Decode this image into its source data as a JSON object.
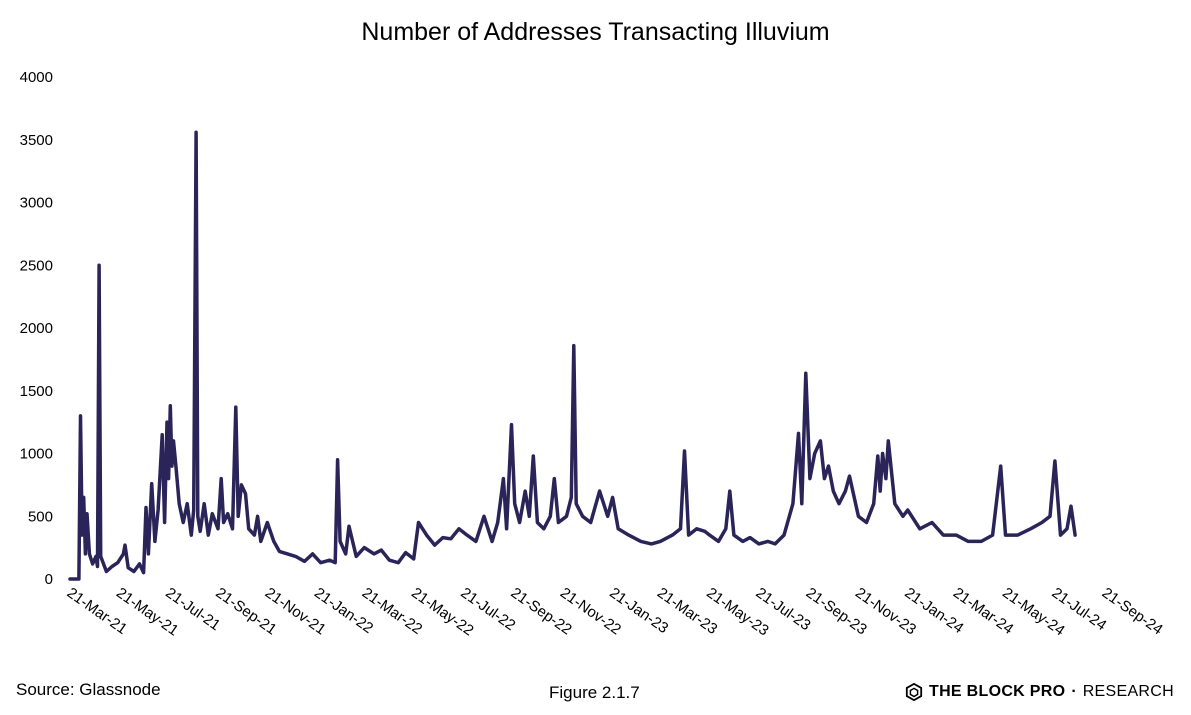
{
  "chart_data": {
    "type": "line",
    "title": "Number of Addresses Transacting Illuvium",
    "xlabel": "",
    "ylabel": "",
    "ylim": [
      0,
      4000
    ],
    "yticks": [
      "0",
      "500",
      "1000",
      "1500",
      "2000",
      "2500",
      "3000",
      "3500",
      "4000"
    ],
    "xticks": [
      "21-Mar-21",
      "21-May-21",
      "21-Jul-21",
      "21-Sep-21",
      "21-Nov-21",
      "21-Jan-22",
      "21-Mar-22",
      "21-May-22",
      "21-Jul-22",
      "21-Sep-22",
      "21-Nov-22",
      "21-Jan-23",
      "21-Mar-23",
      "21-May-23",
      "21-Jul-23",
      "21-Sep-23",
      "21-Nov-23",
      "21-Jan-24",
      "21-Mar-24",
      "21-May-24",
      "21-Jul-24",
      "21-Sep-24"
    ],
    "grid": false,
    "line_color": "#2b2458",
    "series": [
      {
        "name": "",
        "points": [
          [
            "21-Mar-21",
            0
          ],
          [
            "1-Apr-21",
            0
          ],
          [
            "3-Apr-21",
            1300
          ],
          [
            "5-Apr-21",
            350
          ],
          [
            "7-Apr-21",
            650
          ],
          [
            "9-Apr-21",
            200
          ],
          [
            "11-Apr-21",
            520
          ],
          [
            "14-Apr-21",
            200
          ],
          [
            "18-Apr-21",
            120
          ],
          [
            "22-Apr-21",
            180
          ],
          [
            "24-Apr-21",
            100
          ],
          [
            "26-Apr-21",
            2500
          ],
          [
            "28-Apr-21",
            180
          ],
          [
            "5-May-21",
            60
          ],
          [
            "12-May-21",
            100
          ],
          [
            "19-May-21",
            130
          ],
          [
            "26-May-21",
            200
          ],
          [
            "28-May-21",
            270
          ],
          [
            "1-Jun-21",
            90
          ],
          [
            "8-Jun-21",
            60
          ],
          [
            "15-Jun-21",
            120
          ],
          [
            "20-Jun-21",
            50
          ],
          [
            "23-Jun-21",
            570
          ],
          [
            "26-Jun-21",
            200
          ],
          [
            "30-Jun-21",
            760
          ],
          [
            "4-Jul-21",
            300
          ],
          [
            "8-Jul-21",
            550
          ],
          [
            "13-Jul-21",
            1150
          ],
          [
            "16-Jul-21",
            450
          ],
          [
            "19-Jul-21",
            1250
          ],
          [
            "21-Jul-21",
            800
          ],
          [
            "23-Jul-21",
            1380
          ],
          [
            "25-Jul-21",
            900
          ],
          [
            "27-Jul-21",
            1100
          ],
          [
            "30-Jul-21",
            900
          ],
          [
            "3-Aug-21",
            600
          ],
          [
            "8-Aug-21",
            450
          ],
          [
            "13-Aug-21",
            600
          ],
          [
            "18-Aug-21",
            350
          ],
          [
            "21-Aug-21",
            550
          ],
          [
            "24-Aug-21",
            3560
          ],
          [
            "26-Aug-21",
            500
          ],
          [
            "29-Aug-21",
            380
          ],
          [
            "3-Sep-21",
            600
          ],
          [
            "8-Sep-21",
            350
          ],
          [
            "13-Sep-21",
            520
          ],
          [
            "20-Sep-21",
            400
          ],
          [
            "24-Sep-21",
            800
          ],
          [
            "27-Sep-21",
            450
          ],
          [
            "2-Oct-21",
            520
          ],
          [
            "8-Oct-21",
            400
          ],
          [
            "12-Oct-21",
            1370
          ],
          [
            "15-Oct-21",
            500
          ],
          [
            "19-Oct-21",
            750
          ],
          [
            "24-Oct-21",
            680
          ],
          [
            "28-Oct-21",
            400
          ],
          [
            "4-Nov-21",
            350
          ],
          [
            "8-Nov-21",
            500
          ],
          [
            "12-Nov-21",
            300
          ],
          [
            "20-Nov-21",
            450
          ],
          [
            "28-Nov-21",
            300
          ],
          [
            "5-Dec-21",
            220
          ],
          [
            "15-Dec-21",
            200
          ],
          [
            "25-Dec-21",
            180
          ],
          [
            "5-Jan-22",
            140
          ],
          [
            "15-Jan-22",
            200
          ],
          [
            "25-Jan-22",
            130
          ],
          [
            "5-Feb-22",
            150
          ],
          [
            "12-Feb-22",
            130
          ],
          [
            "15-Feb-22",
            950
          ],
          [
            "18-Feb-22",
            300
          ],
          [
            "25-Feb-22",
            200
          ],
          [
            "1-Mar-22",
            420
          ],
          [
            "10-Mar-22",
            180
          ],
          [
            "20-Mar-22",
            250
          ],
          [
            "1-Apr-22",
            200
          ],
          [
            "10-Apr-22",
            230
          ],
          [
            "20-Apr-22",
            150
          ],
          [
            "1-May-22",
            130
          ],
          [
            "10-May-22",
            210
          ],
          [
            "20-May-22",
            160
          ],
          [
            "26-May-22",
            450
          ],
          [
            "5-Jun-22",
            350
          ],
          [
            "15-Jun-22",
            270
          ],
          [
            "25-Jun-22",
            330
          ],
          [
            "5-Jul-22",
            320
          ],
          [
            "15-Jul-22",
            400
          ],
          [
            "25-Jul-22",
            350
          ],
          [
            "5-Aug-22",
            300
          ],
          [
            "15-Aug-22",
            500
          ],
          [
            "25-Aug-22",
            300
          ],
          [
            "1-Sep-22",
            450
          ],
          [
            "8-Sep-22",
            800
          ],
          [
            "12-Sep-22",
            400
          ],
          [
            "18-Sep-22",
            1230
          ],
          [
            "22-Sep-22",
            600
          ],
          [
            "28-Sep-22",
            450
          ],
          [
            "5-Oct-22",
            700
          ],
          [
            "10-Oct-22",
            500
          ],
          [
            "15-Oct-22",
            980
          ],
          [
            "20-Oct-22",
            450
          ],
          [
            "28-Oct-22",
            400
          ],
          [
            "5-Nov-22",
            500
          ],
          [
            "10-Nov-22",
            800
          ],
          [
            "15-Nov-22",
            450
          ],
          [
            "25-Nov-22",
            500
          ],
          [
            "1-Dec-22",
            650
          ],
          [
            "4-Dec-22",
            1860
          ],
          [
            "7-Dec-22",
            600
          ],
          [
            "15-Dec-22",
            500
          ],
          [
            "25-Dec-22",
            450
          ],
          [
            "5-Jan-23",
            700
          ],
          [
            "15-Jan-23",
            500
          ],
          [
            "21-Jan-23",
            650
          ],
          [
            "28-Jan-23",
            400
          ],
          [
            "10-Feb-23",
            350
          ],
          [
            "25-Feb-23",
            300
          ],
          [
            "10-Mar-23",
            280
          ],
          [
            "21-Mar-23",
            300
          ],
          [
            "5-Apr-23",
            350
          ],
          [
            "15-Apr-23",
            400
          ],
          [
            "20-Apr-23",
            1020
          ],
          [
            "25-Apr-23",
            350
          ],
          [
            "5-May-23",
            400
          ],
          [
            "15-May-23",
            380
          ],
          [
            "21-May-23",
            350
          ],
          [
            "1-Jun-23",
            300
          ],
          [
            "10-Jun-23",
            400
          ],
          [
            "15-Jun-23",
            700
          ],
          [
            "20-Jun-23",
            350
          ],
          [
            "1-Jul-23",
            300
          ],
          [
            "10-Jul-23",
            330
          ],
          [
            "21-Jul-23",
            280
          ],
          [
            "1-Aug-23",
            300
          ],
          [
            "10-Aug-23",
            280
          ],
          [
            "21-Aug-23",
            350
          ],
          [
            "1-Sep-23",
            600
          ],
          [
            "8-Sep-23",
            1160
          ],
          [
            "12-Sep-23",
            600
          ],
          [
            "17-Sep-23",
            1640
          ],
          [
            "22-Sep-23",
            800
          ],
          [
            "28-Sep-23",
            1000
          ],
          [
            "5-Oct-23",
            1100
          ],
          [
            "10-Oct-23",
            800
          ],
          [
            "15-Oct-23",
            900
          ],
          [
            "21-Oct-23",
            700
          ],
          [
            "28-Oct-23",
            600
          ],
          [
            "5-Nov-23",
            700
          ],
          [
            "10-Nov-23",
            820
          ],
          [
            "21-Nov-23",
            500
          ],
          [
            "1-Dec-23",
            450
          ],
          [
            "10-Dec-23",
            600
          ],
          [
            "15-Dec-23",
            980
          ],
          [
            "18-Dec-23",
            700
          ],
          [
            "21-Dec-23",
            1000
          ],
          [
            "25-Dec-23",
            800
          ],
          [
            "28-Dec-23",
            1100
          ],
          [
            "5-Jan-24",
            600
          ],
          [
            "15-Jan-24",
            500
          ],
          [
            "21-Jan-24",
            550
          ],
          [
            "5-Feb-24",
            400
          ],
          [
            "20-Feb-24",
            450
          ],
          [
            "5-Mar-24",
            350
          ],
          [
            "21-Mar-24",
            350
          ],
          [
            "5-Apr-24",
            300
          ],
          [
            "21-Apr-24",
            300
          ],
          [
            "5-May-24",
            350
          ],
          [
            "15-May-24",
            900
          ],
          [
            "21-May-24",
            350
          ],
          [
            "5-Jun-24",
            350
          ],
          [
            "21-Jun-24",
            400
          ],
          [
            "5-Jul-24",
            450
          ],
          [
            "15-Jul-24",
            500
          ],
          [
            "21-Jul-24",
            940
          ],
          [
            "28-Jul-24",
            350
          ],
          [
            "5-Aug-24",
            400
          ],
          [
            "10-Aug-24",
            580
          ],
          [
            "15-Aug-24",
            350
          ]
        ]
      }
    ]
  },
  "footer": {
    "source": "Source: Glassnode",
    "figure": "Figure 2.1.7",
    "brand_main": "THE BLOCK PRO",
    "brand_dot": "·",
    "brand_sub": "RESEARCH"
  }
}
